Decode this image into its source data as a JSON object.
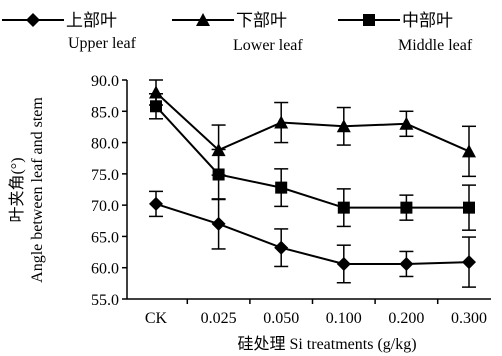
{
  "chart_data": {
    "type": "line",
    "xlabel": "硅处理 Si treatments (g/kg)",
    "ylabel_cn": "叶夹角(°)",
    "ylabel_en": "Angle between leaf and stem",
    "ylim": [
      55.0,
      90.0
    ],
    "yticks": [
      "55.0",
      "60.0",
      "65.0",
      "70.0",
      "75.0",
      "80.0",
      "85.0",
      "90.0"
    ],
    "categories": [
      "CK",
      "0.025",
      "0.050",
      "0.100",
      "0.200",
      "0.300"
    ],
    "legend_position": "top",
    "series": [
      {
        "name_cn": "上部叶",
        "name_en": "Upper leaf",
        "marker": "diamond",
        "values": [
          70.2,
          67.0,
          63.2,
          60.6,
          60.6,
          60.9
        ],
        "errors": [
          2.0,
          4.0,
          3.0,
          3.0,
          2.0,
          4.0
        ]
      },
      {
        "name_cn": "下部叶",
        "name_en": "Lower leaf",
        "marker": "triangle",
        "values": [
          88.0,
          78.8,
          83.2,
          82.6,
          83.0,
          78.6
        ],
        "errors": [
          2.0,
          4.0,
          3.2,
          3.0,
          2.0,
          4.0
        ]
      },
      {
        "name_cn": "中部叶",
        "name_en": "Middle leaf",
        "marker": "square",
        "values": [
          85.8,
          74.9,
          72.8,
          69.6,
          69.6,
          69.6
        ],
        "errors": [
          2.0,
          4.0,
          3.0,
          3.0,
          2.0,
          3.6
        ]
      }
    ]
  }
}
